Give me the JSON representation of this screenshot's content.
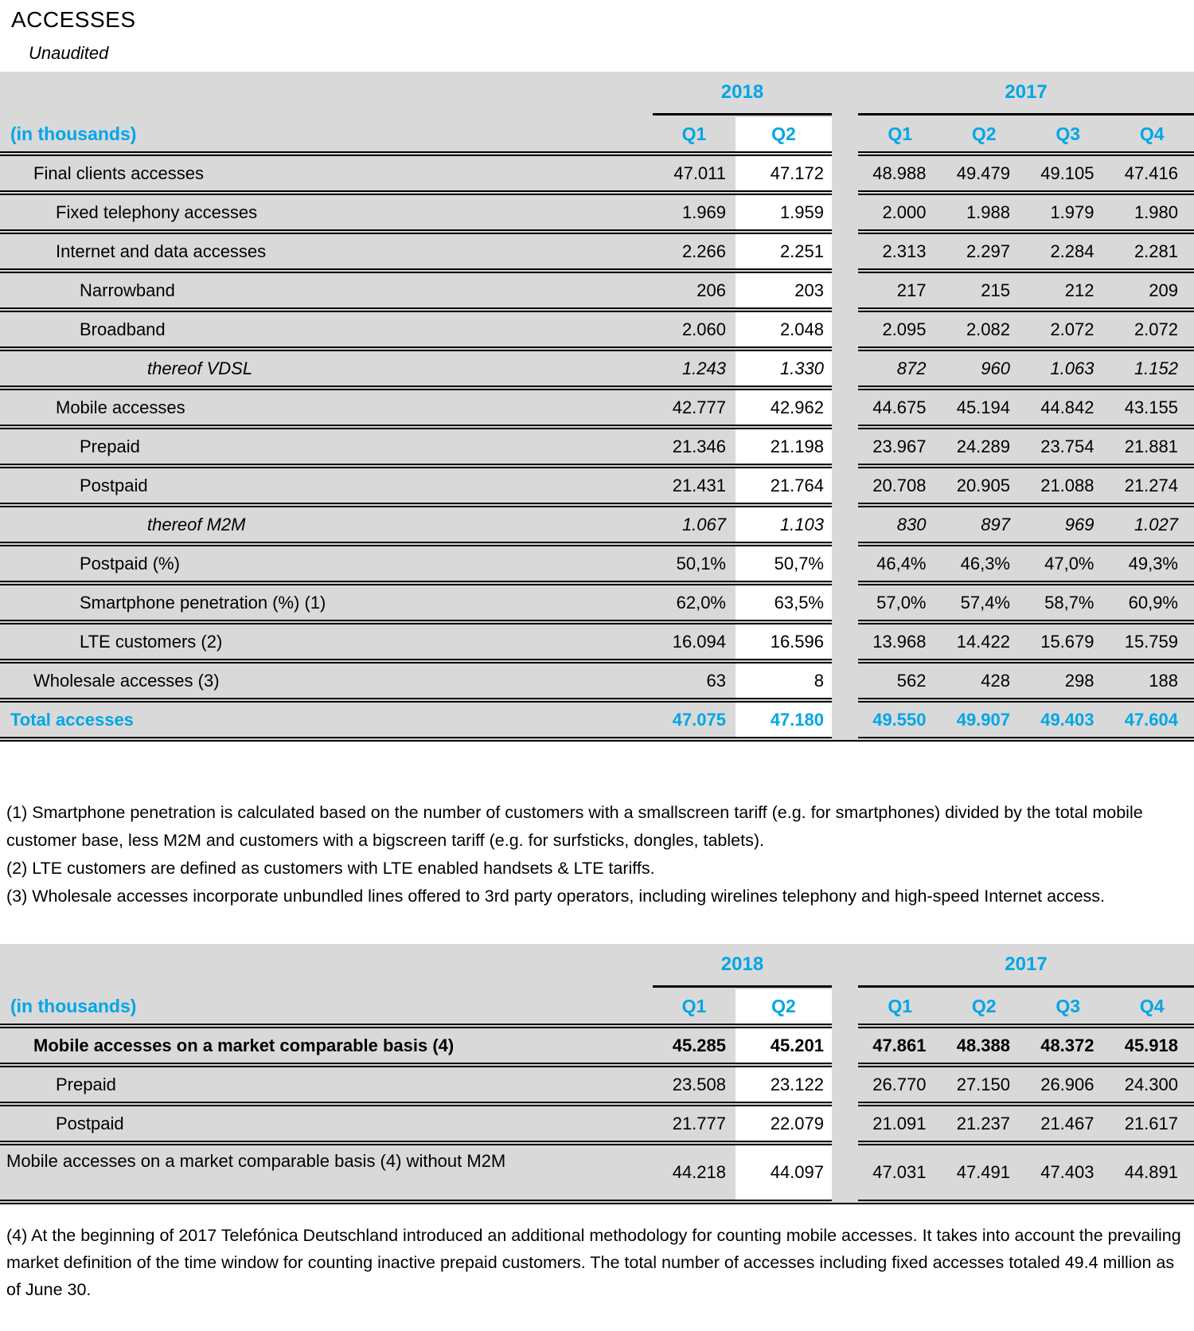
{
  "page": {
    "title": "ACCESSES",
    "subtitle": "Unaudited"
  },
  "colors": {
    "accent": "#00A6E6",
    "row_background": "#D9D9D9",
    "highlight_column_background": "#FFFFFF",
    "border": "#000000"
  },
  "table1": {
    "unit_label": "(in thousands)",
    "year_groups": [
      {
        "label": "2018",
        "quarters": [
          "Q1",
          "Q2"
        ]
      },
      {
        "label": "2017",
        "quarters": [
          "Q1",
          "Q2",
          "Q3",
          "Q4"
        ]
      }
    ],
    "rows": [
      {
        "label": "Final clients accesses",
        "indent": 1,
        "style": "normal",
        "values": [
          "47.011",
          "47.172",
          "48.988",
          "49.479",
          "49.105",
          "47.416"
        ]
      },
      {
        "label": "Fixed telephony accesses",
        "indent": 2,
        "style": "normal",
        "values": [
          "1.969",
          "1.959",
          "2.000",
          "1.988",
          "1.979",
          "1.980"
        ]
      },
      {
        "label": "Internet and data accesses",
        "indent": 2,
        "style": "normal",
        "values": [
          "2.266",
          "2.251",
          "2.313",
          "2.297",
          "2.284",
          "2.281"
        ]
      },
      {
        "label": "Narrowband",
        "indent": 3,
        "style": "normal",
        "values": [
          "206",
          "203",
          "217",
          "215",
          "212",
          "209"
        ]
      },
      {
        "label": "Broadband",
        "indent": 3,
        "style": "normal",
        "values": [
          "2.060",
          "2.048",
          "2.095",
          "2.082",
          "2.072",
          "2.072"
        ]
      },
      {
        "label": "thereof VDSL",
        "indent": 4,
        "style": "italic",
        "values": [
          "1.243",
          "1.330",
          "872",
          "960",
          "1.063",
          "1.152"
        ]
      },
      {
        "label": "Mobile accesses",
        "indent": 2,
        "style": "normal",
        "values": [
          "42.777",
          "42.962",
          "44.675",
          "45.194",
          "44.842",
          "43.155"
        ]
      },
      {
        "label": "Prepaid",
        "indent": 3,
        "style": "normal",
        "values": [
          "21.346",
          "21.198",
          "23.967",
          "24.289",
          "23.754",
          "21.881"
        ]
      },
      {
        "label": "Postpaid",
        "indent": 3,
        "style": "normal",
        "values": [
          "21.431",
          "21.764",
          "20.708",
          "20.905",
          "21.088",
          "21.274"
        ]
      },
      {
        "label": "thereof M2M",
        "indent": 4,
        "style": "italic",
        "values": [
          "1.067",
          "1.103",
          "830",
          "897",
          "969",
          "1.027"
        ]
      },
      {
        "label": "Postpaid (%)",
        "indent": 3,
        "style": "normal",
        "values": [
          "50,1%",
          "50,7%",
          "46,4%",
          "46,3%",
          "47,0%",
          "49,3%"
        ]
      },
      {
        "label": "Smartphone penetration (%) (1)",
        "indent": 3,
        "style": "normal",
        "values": [
          "62,0%",
          "63,5%",
          "57,0%",
          "57,4%",
          "58,7%",
          "60,9%"
        ]
      },
      {
        "label": "LTE customers (2)",
        "indent": 3,
        "style": "normal",
        "values": [
          "16.094",
          "16.596",
          "13.968",
          "14.422",
          "15.679",
          "15.759"
        ]
      },
      {
        "label": "Wholesale accesses (3)",
        "indent": 1,
        "style": "normal",
        "values": [
          "63",
          "8",
          "562",
          "428",
          "298",
          "188"
        ]
      },
      {
        "label": "Total accesses",
        "indent": 0,
        "style": "total",
        "values": [
          "47.075",
          "47.180",
          "49.550",
          "49.907",
          "49.403",
          "47.604"
        ]
      }
    ]
  },
  "footnotes1": [
    "(1) Smartphone penetration is calculated based on the number of customers with a smallscreen tariff (e.g. for smartphones) divided by the total mobile customer base, less M2M and customers with a bigscreen tariff (e.g. for surfsticks, dongles, tablets).",
    "(2) LTE customers are defined as customers with LTE enabled handsets & LTE tariffs.",
    "(3) Wholesale accesses incorporate unbundled lines offered to 3rd party operators, including wirelines telephony and high-speed Internet access."
  ],
  "table2": {
    "unit_label": "(in thousands)",
    "year_groups": [
      {
        "label": "2018",
        "quarters": [
          "Q1",
          "Q2"
        ]
      },
      {
        "label": "2017",
        "quarters": [
          "Q1",
          "Q2",
          "Q3",
          "Q4"
        ]
      }
    ],
    "rows": [
      {
        "label": "Mobile accesses on a market comparable basis (4)",
        "indent": 1,
        "style": "bold",
        "values": [
          "45.285",
          "45.201",
          "47.861",
          "48.388",
          "48.372",
          "45.918"
        ]
      },
      {
        "label": "Prepaid",
        "indent": 2,
        "style": "normal",
        "values": [
          "23.508",
          "23.122",
          "26.770",
          "27.150",
          "26.906",
          "24.300"
        ]
      },
      {
        "label": "Postpaid",
        "indent": 2,
        "style": "normal",
        "values": [
          "21.777",
          "22.079",
          "21.091",
          "21.237",
          "21.467",
          "21.617"
        ]
      },
      {
        "label": "Mobile accesses on a market comparable basis (4) without M2M",
        "indent": 1,
        "style": "normal",
        "tall": true,
        "values": [
          "44.218",
          "44.097",
          "47.031",
          "47.491",
          "47.403",
          "44.891"
        ]
      }
    ]
  },
  "footnotes2": [
    "(4) At the beginning of 2017 Telefónica Deutschland introduced an additional methodology for counting mobile accesses. It takes into account the prevailing market definition of the time window for counting inactive prepaid customers. The total number of accesses including fixed accesses totaled 49.4 million as of June 30."
  ]
}
